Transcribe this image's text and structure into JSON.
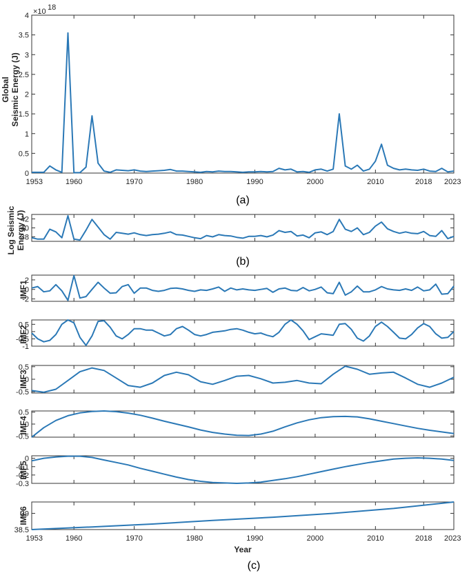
{
  "figure": {
    "captions": [
      "(a)",
      "(b)",
      "(c)"
    ],
    "line_color": "#2a78b6",
    "x_axis_label": "Year",
    "x_tick_labels": [
      "1953",
      "1960",
      "1970",
      "1980",
      "1990",
      "2000",
      "2010",
      "2018",
      "2023"
    ]
  },
  "chart_data": [
    {
      "type": "line",
      "name": "a",
      "ylabel": "Global\nSeismic Energy (J)",
      "y_exponent_label": "×10",
      "y_exponent_power": "18",
      "xlim": [
        1953,
        2023
      ],
      "ylim": [
        0,
        4
      ],
      "yticks": [
        0,
        0.5,
        1,
        1.5,
        2,
        2.5,
        3,
        3.5,
        4
      ],
      "ytick_labels": [
        "0",
        "0.5",
        "1",
        "1.5",
        "2",
        "2.5",
        "3",
        "3.5",
        "4"
      ],
      "xticks": [
        1953,
        1960,
        1970,
        1980,
        1990,
        2000,
        2010,
        2018,
        2023
      ],
      "xtick_labels": [
        "1953",
        "1960",
        "1970",
        "1980",
        "1990",
        "2000",
        "2010",
        "2018",
        "2023"
      ],
      "x": [
        1953,
        1954,
        1955,
        1956,
        1957,
        1958,
        1959,
        1960,
        1961,
        1962,
        1963,
        1964,
        1965,
        1966,
        1967,
        1968,
        1969,
        1970,
        1971,
        1972,
        1973,
        1974,
        1975,
        1976,
        1977,
        1978,
        1979,
        1980,
        1981,
        1982,
        1983,
        1984,
        1985,
        1986,
        1987,
        1988,
        1989,
        1990,
        1991,
        1992,
        1993,
        1994,
        1995,
        1996,
        1997,
        1998,
        1999,
        2000,
        2001,
        2002,
        2003,
        2004,
        2005,
        2006,
        2007,
        2008,
        2009,
        2010,
        2011,
        2012,
        2013,
        2014,
        2015,
        2016,
        2017,
        2018,
        2019,
        2020,
        2021,
        2022,
        2023
      ],
      "values": [
        0.02,
        0.02,
        0.02,
        0.18,
        0.08,
        0.02,
        3.55,
        0.01,
        0.01,
        0.15,
        1.45,
        0.25,
        0.05,
        0.02,
        0.08,
        0.07,
        0.06,
        0.08,
        0.05,
        0.04,
        0.05,
        0.06,
        0.07,
        0.09,
        0.05,
        0.05,
        0.04,
        0.03,
        0.02,
        0.04,
        0.03,
        0.05,
        0.04,
        0.04,
        0.03,
        0.02,
        0.03,
        0.03,
        0.04,
        0.03,
        0.04,
        0.12,
        0.08,
        0.1,
        0.03,
        0.04,
        0.02,
        0.08,
        0.1,
        0.05,
        0.1,
        1.5,
        0.18,
        0.1,
        0.2,
        0.05,
        0.1,
        0.3,
        0.73,
        0.2,
        0.12,
        0.08,
        0.1,
        0.08,
        0.07,
        0.1,
        0.05,
        0.04,
        0.12,
        0.03,
        0.05
      ]
    },
    {
      "type": "line",
      "name": "b",
      "ylabel": "Log Seismic\nEnergy (J)",
      "xlim": [
        1953,
        2023
      ],
      "ylim": [
        37,
        43
      ],
      "yticks": [
        38,
        40,
        42
      ],
      "ytick_labels": [
        "38",
        "40",
        "42"
      ],
      "xticks": [
        1953,
        1960,
        1970,
        1980,
        1990,
        2000,
        2010,
        2018,
        2023
      ],
      "xtick_labels": [],
      "x": [
        1953,
        1954,
        1955,
        1956,
        1957,
        1958,
        1959,
        1960,
        1961,
        1962,
        1963,
        1964,
        1965,
        1966,
        1967,
        1968,
        1969,
        1970,
        1971,
        1972,
        1973,
        1974,
        1975,
        1976,
        1977,
        1978,
        1979,
        1980,
        1981,
        1982,
        1983,
        1984,
        1985,
        1986,
        1987,
        1988,
        1989,
        1990,
        1991,
        1992,
        1993,
        1994,
        1995,
        1996,
        1997,
        1998,
        1999,
        2000,
        2001,
        2002,
        2003,
        2004,
        2005,
        2006,
        2007,
        2008,
        2009,
        2010,
        2011,
        2012,
        2013,
        2014,
        2015,
        2016,
        2017,
        2018,
        2019,
        2020,
        2021,
        2022,
        2023
      ],
      "values": [
        37.8,
        37.5,
        37.5,
        39.7,
        39.1,
        37.8,
        42.7,
        37.5,
        37.3,
        39.5,
        41.9,
        40.2,
        38.5,
        37.5,
        39,
        38.8,
        38.6,
        38.9,
        38.5,
        38.3,
        38.5,
        38.6,
        38.8,
        39.1,
        38.5,
        38.4,
        38.1,
        37.8,
        37.6,
        38.3,
        38,
        38.5,
        38.3,
        38.2,
        37.9,
        37.7,
        38.1,
        38.1,
        38.3,
        38,
        38.4,
        39.4,
        39,
        39.2,
        38.2,
        38.4,
        37.8,
        38.9,
        39.1,
        38.5,
        39.2,
        41.9,
        39.7,
        39.2,
        40,
        38.5,
        39,
        40.4,
        41.3,
        39.8,
        39.2,
        38.8,
        39.1,
        38.8,
        38.7,
        39.2,
        38.3,
        38.1,
        39.4,
        37.6,
        38.1
      ]
    },
    {
      "type": "line",
      "name": "IMF1",
      "ylabel": "IMF1",
      "xlim": [
        1953,
        2023
      ],
      "ylim": [
        -2.5,
        3
      ],
      "yticks": [
        -2,
        0,
        2
      ],
      "ytick_labels": [
        "-2",
        "0",
        "2"
      ],
      "xticks": [
        1953,
        1960,
        1970,
        1980,
        1990,
        2000,
        2010,
        2018,
        2023
      ],
      "xtick_labels": [],
      "x": [
        1953,
        1954,
        1955,
        1956,
        1957,
        1958,
        1959,
        1960,
        1961,
        1962,
        1963,
        1964,
        1965,
        1966,
        1967,
        1968,
        1969,
        1970,
        1971,
        1972,
        1973,
        1974,
        1975,
        1976,
        1977,
        1978,
        1979,
        1980,
        1981,
        1982,
        1983,
        1984,
        1985,
        1986,
        1987,
        1988,
        1989,
        1990,
        1991,
        1992,
        1993,
        1994,
        1995,
        1996,
        1997,
        1998,
        1999,
        2000,
        2001,
        2002,
        2003,
        2004,
        2005,
        2006,
        2007,
        2008,
        2009,
        2010,
        2011,
        2012,
        2013,
        2014,
        2015,
        2016,
        2017,
        2018,
        2019,
        2020,
        2021,
        2022,
        2023
      ],
      "values": [
        0.3,
        0.6,
        -0.5,
        -0.3,
        1,
        -0.3,
        -2.3,
        2.9,
        -1.8,
        -1.5,
        0,
        1.5,
        0.3,
        -0.8,
        -0.7,
        0.6,
        1,
        -0.8,
        0.3,
        0.3,
        -0.2,
        -0.4,
        -0.2,
        0.2,
        0.3,
        0.1,
        -0.2,
        -0.4,
        -0.1,
        -0.2,
        0.1,
        0.5,
        -0.4,
        0.3,
        -0.1,
        0.1,
        -0.1,
        -0.2,
        0,
        0.2,
        -0.6,
        0.1,
        0.3,
        -0.2,
        -0.3,
        0.4,
        -0.3,
        0,
        0.5,
        -0.7,
        -0.9,
        1.5,
        -1.2,
        -0.5,
        0.7,
        -0.5,
        -0.5,
        -0.1,
        0.6,
        0.1,
        -0.1,
        -0.2,
        0.1,
        -0.2,
        0.5,
        -0.3,
        -0.1,
        1.1,
        -1,
        -0.9,
        0.7
      ]
    },
    {
      "type": "line",
      "name": "IMF2",
      "ylabel": "IMF2",
      "xlim": [
        1953,
        2023
      ],
      "ylim": [
        -1,
        0.8
      ],
      "yticks": [
        -1,
        -0.5,
        0,
        0.5
      ],
      "ytick_labels": [
        "-1",
        "-0.5",
        "0",
        "0.5"
      ],
      "xticks": [
        1953,
        1960,
        1970,
        1980,
        1990,
        2000,
        2010,
        2018,
        2023
      ],
      "xtick_labels": [],
      "x": [
        1953,
        1954,
        1955,
        1956,
        1957,
        1958,
        1959,
        1960,
        1961,
        1962,
        1963,
        1964,
        1965,
        1966,
        1967,
        1968,
        1969,
        1970,
        1971,
        1972,
        1973,
        1974,
        1975,
        1976,
        1977,
        1978,
        1979,
        1980,
        1981,
        1982,
        1983,
        1984,
        1985,
        1986,
        1987,
        1988,
        1989,
        1990,
        1991,
        1992,
        1993,
        1994,
        1995,
        1996,
        1997,
        1998,
        1999,
        2000,
        2001,
        2002,
        2003,
        2004,
        2005,
        2006,
        2007,
        2008,
        2009,
        2010,
        2011,
        2012,
        2013,
        2014,
        2015,
        2016,
        2017,
        2018,
        2019,
        2020,
        2021,
        2022,
        2023
      ],
      "values": [
        -0.1,
        -0.5,
        -0.7,
        -0.6,
        -0.2,
        0.5,
        0.8,
        0.6,
        -0.4,
        -0.95,
        -0.3,
        0.7,
        0.75,
        0.3,
        -0.3,
        -0.5,
        -0.2,
        0.2,
        0.2,
        0.1,
        0.1,
        -0.1,
        -0.3,
        -0.2,
        0.2,
        0.35,
        0.1,
        -0.2,
        -0.3,
        -0.2,
        -0.05,
        0,
        0.05,
        0.15,
        0.2,
        0.1,
        -0.05,
        -0.15,
        -0.1,
        -0.25,
        -0.35,
        -0.05,
        0.5,
        0.8,
        0.5,
        0.05,
        -0.55,
        -0.35,
        -0.15,
        -0.2,
        -0.25,
        0.5,
        0.55,
        0.15,
        -0.45,
        -0.65,
        -0.3,
        0.35,
        0.65,
        0.35,
        -0.05,
        -0.45,
        -0.5,
        -0.2,
        0.25,
        0.55,
        0.35,
        -0.15,
        -0.45,
        -0.4,
        0
      ]
    },
    {
      "type": "line",
      "name": "IMF3",
      "ylabel": "IMF3",
      "xlim": [
        1953,
        2023
      ],
      "ylim": [
        -0.55,
        0.55
      ],
      "yticks": [
        -0.5,
        0,
        0.5
      ],
      "ytick_labels": [
        "-0.5",
        "0",
        "0.5"
      ],
      "xticks": [
        1953,
        1960,
        1970,
        1980,
        1990,
        2000,
        2010,
        2018,
        2023
      ],
      "xtick_labels": [],
      "x": [
        1953,
        1955,
        1957,
        1959,
        1961,
        1963,
        1965,
        1967,
        1969,
        1971,
        1973,
        1975,
        1977,
        1979,
        1981,
        1983,
        1985,
        1987,
        1989,
        1991,
        1993,
        1995,
        1997,
        1999,
        2001,
        2003,
        2005,
        2007,
        2009,
        2011,
        2013,
        2015,
        2017,
        2019,
        2021,
        2023
      ],
      "values": [
        -0.45,
        -0.52,
        -0.4,
        -0.05,
        0.3,
        0.45,
        0.35,
        0.05,
        -0.25,
        -0.32,
        -0.15,
        0.15,
        0.28,
        0.18,
        -0.1,
        -0.2,
        -0.05,
        0.12,
        0.15,
        0.02,
        -0.15,
        -0.12,
        -0.05,
        -0.15,
        -0.18,
        0.2,
        0.52,
        0.4,
        0.2,
        0.25,
        0.28,
        0.05,
        -0.2,
        -0.32,
        -0.15,
        0.08
      ]
    },
    {
      "type": "line",
      "name": "IMF4",
      "ylabel": "IMF4",
      "xlim": [
        1953,
        2023
      ],
      "ylim": [
        -0.55,
        0.55
      ],
      "yticks": [
        -0.5,
        0,
        0.5
      ],
      "ytick_labels": [
        "-0.5",
        "0",
        "0.5"
      ],
      "xticks": [
        1953,
        1960,
        1970,
        1980,
        1990,
        2000,
        2010,
        2018,
        2023
      ],
      "xtick_labels": [],
      "x": [
        1953,
        1955,
        1957,
        1959,
        1961,
        1963,
        1965,
        1967,
        1969,
        1971,
        1973,
        1975,
        1977,
        1979,
        1981,
        1983,
        1985,
        1987,
        1989,
        1991,
        1993,
        1995,
        1997,
        1999,
        2001,
        2003,
        2005,
        2007,
        2009,
        2011,
        2013,
        2015,
        2017,
        2019,
        2021,
        2023
      ],
      "values": [
        -0.55,
        -0.15,
        0.15,
        0.35,
        0.47,
        0.53,
        0.55,
        0.52,
        0.46,
        0.37,
        0.25,
        0.12,
        0,
        -0.12,
        -0.25,
        -0.35,
        -0.42,
        -0.47,
        -0.48,
        -0.42,
        -0.3,
        -0.12,
        0.05,
        0.18,
        0.27,
        0.31,
        0.32,
        0.3,
        0.22,
        0.12,
        0.02,
        -0.08,
        -0.18,
        -0.26,
        -0.33,
        -0.4
      ]
    },
    {
      "type": "line",
      "name": "IMF5",
      "ylabel": "IMF5",
      "xlim": [
        1953,
        2023
      ],
      "ylim": [
        -0.3,
        0.03
      ],
      "yticks": [
        -0.3,
        -0.2,
        -0.1,
        0
      ],
      "ytick_labels": [
        "-0.3",
        "-0.2",
        "-0.1",
        "0"
      ],
      "xticks": [
        1953,
        1960,
        1970,
        1980,
        1990,
        2000,
        2010,
        2018,
        2023
      ],
      "xtick_labels": [],
      "x": [
        1953,
        1955,
        1957,
        1959,
        1961,
        1963,
        1965,
        1967,
        1969,
        1971,
        1973,
        1975,
        1977,
        1979,
        1981,
        1983,
        1985,
        1987,
        1989,
        1991,
        1993,
        1995,
        1997,
        1999,
        2001,
        2003,
        2005,
        2007,
        2009,
        2011,
        2013,
        2015,
        2017,
        2019,
        2021,
        2023
      ],
      "values": [
        -0.03,
        0,
        0.015,
        0.025,
        0.025,
        0.01,
        -0.02,
        -0.05,
        -0.08,
        -0.12,
        -0.155,
        -0.19,
        -0.225,
        -0.255,
        -0.275,
        -0.29,
        -0.295,
        -0.3,
        -0.295,
        -0.285,
        -0.265,
        -0.245,
        -0.22,
        -0.19,
        -0.16,
        -0.13,
        -0.1,
        -0.075,
        -0.05,
        -0.03,
        -0.01,
        0,
        0.005,
        0,
        -0.01,
        -0.025
      ]
    },
    {
      "type": "line",
      "name": "IMF6",
      "ylabel": "IMF6",
      "xlim": [
        1953,
        2023
      ],
      "ylim": [
        38.5,
        39.35
      ],
      "yticks": [
        38.5,
        39
      ],
      "ytick_labels": [
        "38.5",
        "39"
      ],
      "xticks": [
        1953,
        1960,
        1970,
        1980,
        1990,
        2000,
        2010,
        2018,
        2023
      ],
      "xtick_labels": [
        "1953",
        "1960",
        "1970",
        "1980",
        "1990",
        "2000",
        "2010",
        "2018",
        "2023"
      ],
      "xlabel": "Year",
      "x": [
        1953,
        1963,
        1973,
        1983,
        1993,
        2003,
        2013,
        2023
      ],
      "values": [
        38.5,
        38.58,
        38.67,
        38.78,
        38.88,
        39.0,
        39.15,
        39.35
      ]
    }
  ]
}
